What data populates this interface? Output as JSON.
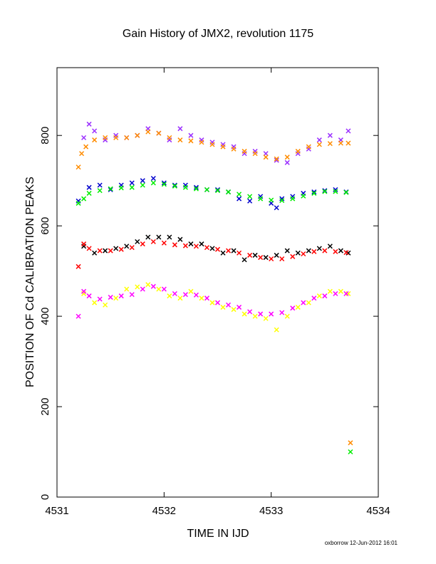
{
  "chart_data": {
    "type": "scatter",
    "title": "Gain History of JMX2, revolution 1175",
    "xlabel": "TIME IN IJD",
    "ylabel": "POSITION OF Cd CALIBRATION PEAKS",
    "xlim": [
      4531,
      4534
    ],
    "ylim": [
      0,
      950
    ],
    "grid": false,
    "x_ticks": [
      4531,
      4532,
      4533,
      4534
    ],
    "x_tick_labels": [
      "4531",
      "4532",
      "4533",
      "4534"
    ],
    "y_ticks": [
      0,
      200,
      400,
      600,
      800
    ],
    "y_tick_labels": [
      "0",
      "200",
      "400",
      "600",
      "800"
    ],
    "footer": "oxborrow 12-Jun-2012 16:01",
    "series": [
      {
        "color": "#9b30ff",
        "marker": "x",
        "points": [
          [
            4531.25,
            795
          ],
          [
            4531.3,
            825
          ],
          [
            4531.35,
            810
          ],
          [
            4531.45,
            790
          ],
          [
            4531.55,
            800
          ],
          [
            4531.65,
            795
          ],
          [
            4531.75,
            800
          ],
          [
            4531.85,
            815
          ],
          [
            4531.95,
            805
          ],
          [
            4532.05,
            790
          ],
          [
            4532.15,
            815
          ],
          [
            4532.25,
            800
          ],
          [
            4532.35,
            790
          ],
          [
            4532.45,
            785
          ],
          [
            4532.55,
            780
          ],
          [
            4532.65,
            775
          ],
          [
            4532.75,
            760
          ],
          [
            4532.85,
            765
          ],
          [
            4532.95,
            760
          ],
          [
            4533.05,
            745
          ],
          [
            4533.15,
            740
          ],
          [
            4533.25,
            760
          ],
          [
            4533.35,
            770
          ],
          [
            4533.45,
            790
          ],
          [
            4533.55,
            800
          ],
          [
            4533.65,
            790
          ],
          [
            4533.72,
            810
          ]
        ]
      },
      {
        "color": "#ff8c00",
        "marker": "x",
        "points": [
          [
            4531.2,
            730
          ],
          [
            4531.23,
            760
          ],
          [
            4531.27,
            775
          ],
          [
            4531.35,
            790
          ],
          [
            4531.45,
            795
          ],
          [
            4531.55,
            795
          ],
          [
            4531.65,
            795
          ],
          [
            4531.75,
            800
          ],
          [
            4531.85,
            808
          ],
          [
            4531.95,
            805
          ],
          [
            4532.05,
            795
          ],
          [
            4532.15,
            790
          ],
          [
            4532.25,
            788
          ],
          [
            4532.35,
            785
          ],
          [
            4532.45,
            780
          ],
          [
            4532.55,
            775
          ],
          [
            4532.65,
            770
          ],
          [
            4532.75,
            765
          ],
          [
            4532.85,
            760
          ],
          [
            4532.95,
            752
          ],
          [
            4533.05,
            748
          ],
          [
            4533.15,
            752
          ],
          [
            4533.25,
            765
          ],
          [
            4533.35,
            775
          ],
          [
            4533.45,
            780
          ],
          [
            4533.55,
            782
          ],
          [
            4533.65,
            783
          ],
          [
            4533.72,
            783
          ],
          [
            4533.74,
            120
          ]
        ]
      },
      {
        "color": "#0000cd",
        "marker": "x",
        "points": [
          [
            4531.2,
            655
          ],
          [
            4531.3,
            685
          ],
          [
            4531.4,
            690
          ],
          [
            4531.5,
            680
          ],
          [
            4531.6,
            690
          ],
          [
            4531.7,
            695
          ],
          [
            4531.8,
            700
          ],
          [
            4531.9,
            705
          ],
          [
            4532.0,
            695
          ],
          [
            4532.1,
            690
          ],
          [
            4532.2,
            690
          ],
          [
            4532.3,
            685
          ],
          [
            4532.4,
            680
          ],
          [
            4532.5,
            680
          ],
          [
            4532.6,
            675
          ],
          [
            4532.7,
            660
          ],
          [
            4532.8,
            655
          ],
          [
            4532.9,
            665
          ],
          [
            4533.0,
            650
          ],
          [
            4533.05,
            640
          ],
          [
            4533.1,
            660
          ],
          [
            4533.2,
            665
          ],
          [
            4533.3,
            672
          ],
          [
            4533.4,
            675
          ],
          [
            4533.5,
            678
          ],
          [
            4533.6,
            680
          ],
          [
            4533.7,
            675
          ]
        ]
      },
      {
        "color": "#00ee00",
        "marker": "x",
        "points": [
          [
            4531.2,
            650
          ],
          [
            4531.25,
            660
          ],
          [
            4531.3,
            672
          ],
          [
            4531.4,
            678
          ],
          [
            4531.5,
            682
          ],
          [
            4531.6,
            684
          ],
          [
            4531.7,
            685
          ],
          [
            4531.8,
            690
          ],
          [
            4531.9,
            695
          ],
          [
            4532.0,
            692
          ],
          [
            4532.1,
            688
          ],
          [
            4532.2,
            685
          ],
          [
            4532.3,
            682
          ],
          [
            4532.4,
            680
          ],
          [
            4532.5,
            678
          ],
          [
            4532.6,
            675
          ],
          [
            4532.7,
            670
          ],
          [
            4532.8,
            665
          ],
          [
            4532.9,
            660
          ],
          [
            4533.0,
            657
          ],
          [
            4533.1,
            656
          ],
          [
            4533.2,
            660
          ],
          [
            4533.3,
            666
          ],
          [
            4533.4,
            672
          ],
          [
            4533.5,
            676
          ],
          [
            4533.6,
            676
          ],
          [
            4533.7,
            674
          ],
          [
            4533.74,
            100
          ]
        ]
      },
      {
        "color": "#000000",
        "marker": "x",
        "points": [
          [
            4531.25,
            555
          ],
          [
            4531.35,
            540
          ],
          [
            4531.45,
            545
          ],
          [
            4531.55,
            550
          ],
          [
            4531.65,
            555
          ],
          [
            4531.75,
            565
          ],
          [
            4531.85,
            575
          ],
          [
            4531.95,
            575
          ],
          [
            4532.05,
            575
          ],
          [
            4532.15,
            570
          ],
          [
            4532.25,
            560
          ],
          [
            4532.35,
            560
          ],
          [
            4532.45,
            550
          ],
          [
            4532.55,
            540
          ],
          [
            4532.65,
            545
          ],
          [
            4532.75,
            525
          ],
          [
            4532.85,
            535
          ],
          [
            4532.95,
            530
          ],
          [
            4533.05,
            535
          ],
          [
            4533.15,
            545
          ],
          [
            4533.25,
            540
          ],
          [
            4533.35,
            545
          ],
          [
            4533.45,
            550
          ],
          [
            4533.55,
            555
          ],
          [
            4533.65,
            545
          ],
          [
            4533.72,
            540
          ]
        ]
      },
      {
        "color": "#ff0000",
        "marker": "x",
        "points": [
          [
            4531.2,
            510
          ],
          [
            4531.25,
            560
          ],
          [
            4531.3,
            550
          ],
          [
            4531.4,
            545
          ],
          [
            4531.5,
            545
          ],
          [
            4531.6,
            548
          ],
          [
            4531.7,
            552
          ],
          [
            4531.8,
            560
          ],
          [
            4531.9,
            565
          ],
          [
            4532.0,
            562
          ],
          [
            4532.1,
            558
          ],
          [
            4532.2,
            556
          ],
          [
            4532.3,
            555
          ],
          [
            4532.4,
            552
          ],
          [
            4532.5,
            548
          ],
          [
            4532.6,
            545
          ],
          [
            4532.7,
            540
          ],
          [
            4532.8,
            535
          ],
          [
            4532.9,
            530
          ],
          [
            4533.0,
            527
          ],
          [
            4533.1,
            527
          ],
          [
            4533.2,
            532
          ],
          [
            4533.3,
            538
          ],
          [
            4533.4,
            543
          ],
          [
            4533.5,
            545
          ],
          [
            4533.6,
            543
          ],
          [
            4533.7,
            541
          ]
        ]
      },
      {
        "color": "#ffff00",
        "marker": "x",
        "points": [
          [
            4531.25,
            450
          ],
          [
            4531.35,
            430
          ],
          [
            4531.45,
            425
          ],
          [
            4531.55,
            440
          ],
          [
            4531.65,
            460
          ],
          [
            4531.75,
            465
          ],
          [
            4531.85,
            470
          ],
          [
            4531.95,
            460
          ],
          [
            4532.05,
            445
          ],
          [
            4532.15,
            440
          ],
          [
            4532.25,
            455
          ],
          [
            4532.35,
            440
          ],
          [
            4532.45,
            430
          ],
          [
            4532.55,
            420
          ],
          [
            4532.65,
            415
          ],
          [
            4532.75,
            405
          ],
          [
            4532.85,
            400
          ],
          [
            4532.95,
            395
          ],
          [
            4533.05,
            370
          ],
          [
            4533.15,
            400
          ],
          [
            4533.25,
            420
          ],
          [
            4533.35,
            430
          ],
          [
            4533.45,
            445
          ],
          [
            4533.55,
            455
          ],
          [
            4533.65,
            455
          ],
          [
            4533.72,
            450
          ]
        ]
      },
      {
        "color": "#ff00ff",
        "marker": "x",
        "points": [
          [
            4531.2,
            400
          ],
          [
            4531.25,
            455
          ],
          [
            4531.3,
            445
          ],
          [
            4531.4,
            438
          ],
          [
            4531.5,
            442
          ],
          [
            4531.6,
            445
          ],
          [
            4531.7,
            448
          ],
          [
            4531.8,
            460
          ],
          [
            4531.9,
            466
          ],
          [
            4532.0,
            460
          ],
          [
            4532.1,
            450
          ],
          [
            4532.2,
            448
          ],
          [
            4532.3,
            447
          ],
          [
            4532.4,
            440
          ],
          [
            4532.5,
            430
          ],
          [
            4532.6,
            425
          ],
          [
            4532.7,
            420
          ],
          [
            4532.8,
            410
          ],
          [
            4532.9,
            405
          ],
          [
            4533.0,
            405
          ],
          [
            4533.1,
            408
          ],
          [
            4533.2,
            418
          ],
          [
            4533.3,
            430
          ],
          [
            4533.4,
            440
          ],
          [
            4533.5,
            445
          ],
          [
            4533.6,
            450
          ],
          [
            4533.7,
            450
          ]
        ]
      }
    ]
  }
}
